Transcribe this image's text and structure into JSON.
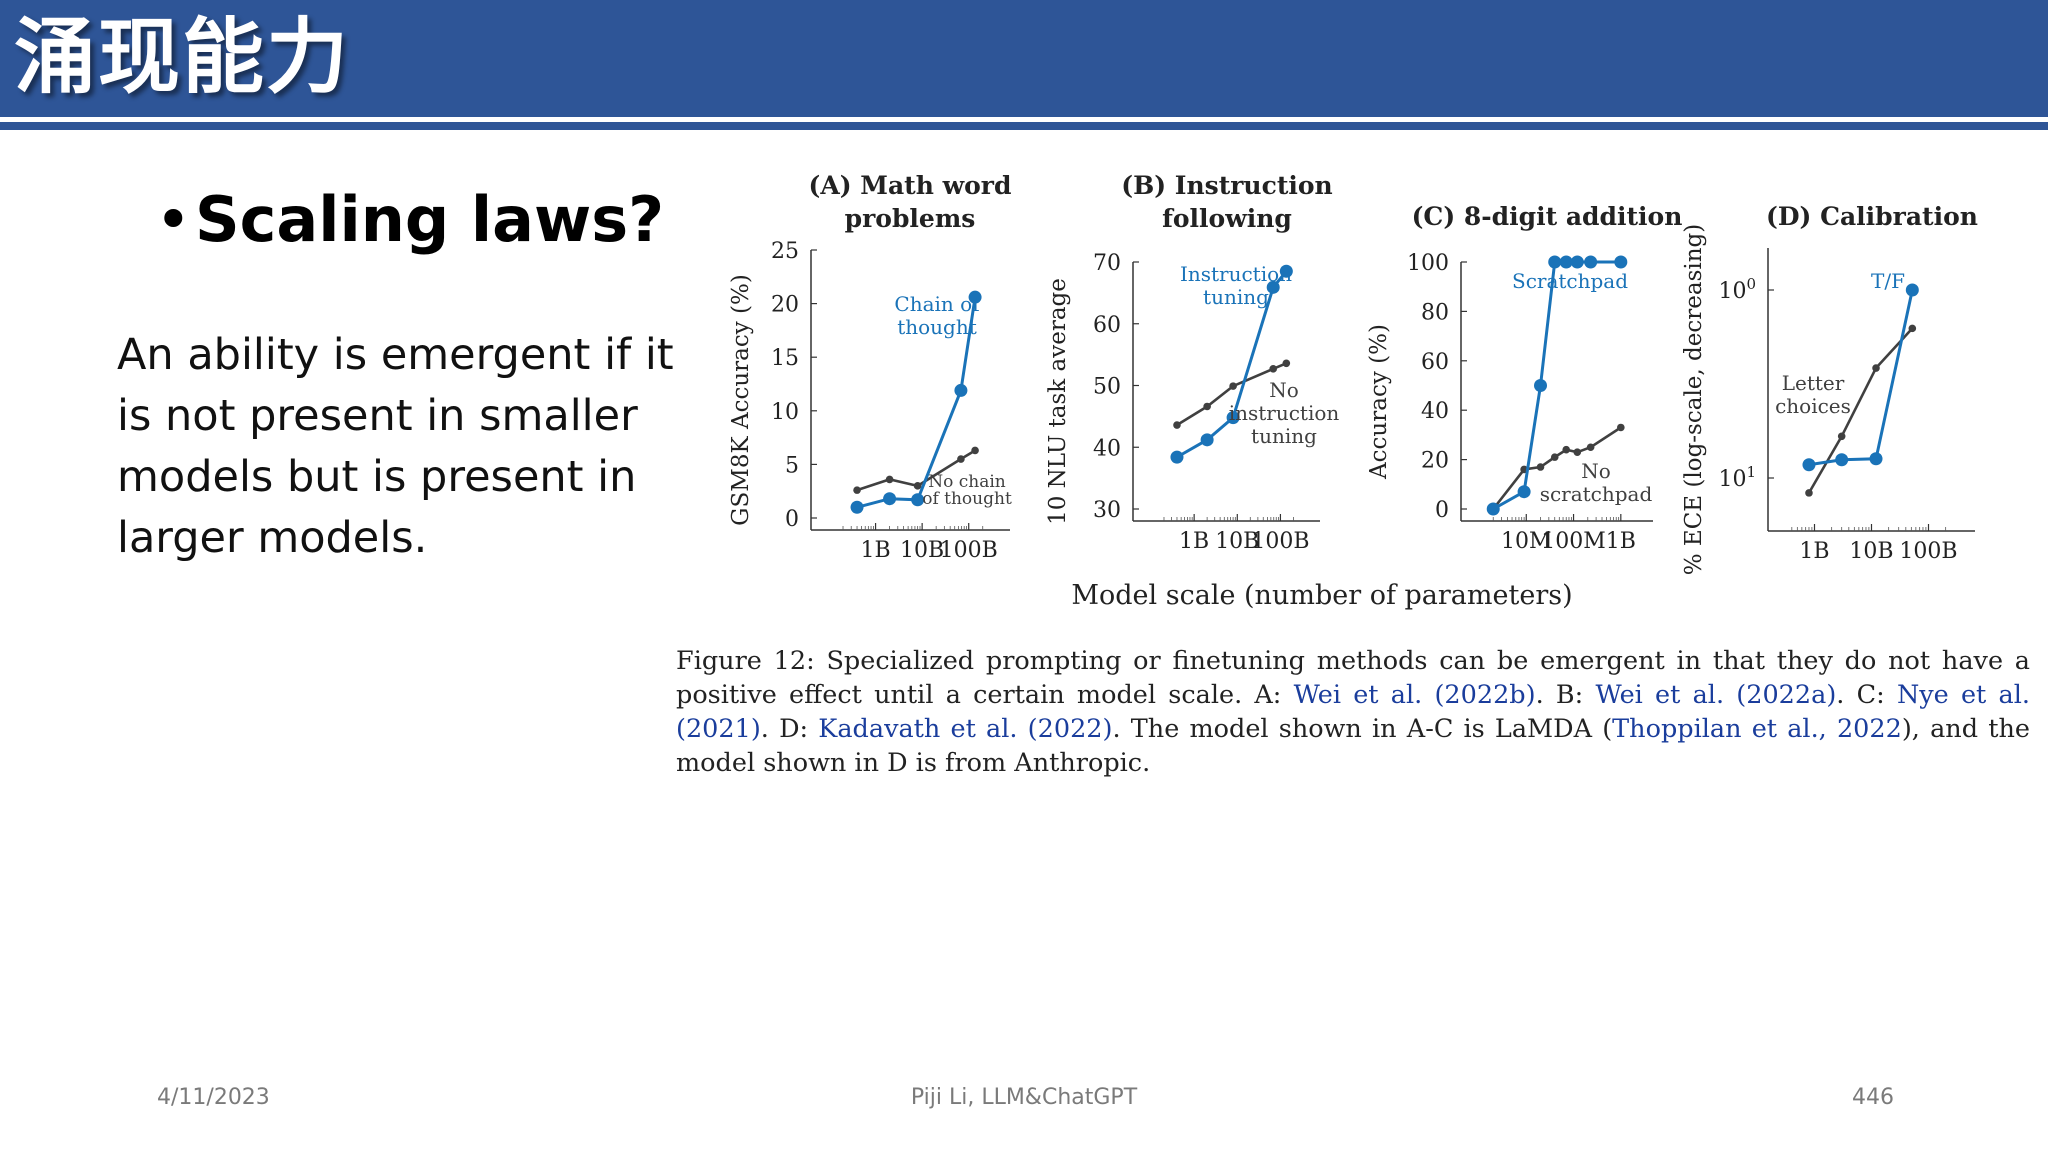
{
  "slide": {
    "title": "涌现能力",
    "bullet": "Scaling laws?",
    "paragraph": "An ability is emergent if it is not present in smaller models but is present in larger models."
  },
  "figure": {
    "shared_xlabel": "Model scale (number of parameters)",
    "caption": {
      "p1": "Figure 12: Specialized prompting or finetuning methods can be emergent in that they do not have a positive effect until a certain model scale.  A: ",
      "ref_a": "Wei et al. (2022b)",
      "p2": ".  B: ",
      "ref_b": "Wei et al. (2022a)",
      "p3": ".  C: ",
      "ref_c": "Nye et al. (2021)",
      "p4": ".  D: ",
      "ref_d": "Kadavath et al. (2022)",
      "p5": ". The model shown in A-C is LaMDA (",
      "ref_e": "Thoppilan et al., 2022",
      "p6": "), and the model shown in D is from Anthropic."
    }
  },
  "chart_data": [
    {
      "type": "line",
      "title": "(A) Math word problems",
      "ylabel": "GSM8K Accuracy (%)",
      "xscale": "log",
      "xticks": [
        "1B",
        "10B",
        "100B"
      ],
      "yticks": [
        "0",
        "5",
        "10",
        "15",
        "20",
        "25"
      ],
      "ylim": [
        0,
        25
      ],
      "series": [
        {
          "name": "Chain of thought",
          "color": "#1a73b8",
          "x": [
            400000000.0,
            2000000000.0,
            8000000000.0,
            68000000000.0,
            137000000000.0
          ],
          "y": [
            1.0,
            1.8,
            1.7,
            11.9,
            20.6
          ]
        },
        {
          "name": "No chain of thought",
          "color": "#404040",
          "x": [
            400000000.0,
            2000000000.0,
            8000000000.0,
            68000000000.0,
            137000000000.0
          ],
          "y": [
            2.6,
            3.6,
            3.0,
            5.5,
            6.3
          ]
        }
      ]
    },
    {
      "type": "line",
      "title": "(B) Instruction following",
      "ylabel": "10 NLU task average",
      "xscale": "log",
      "xticks": [
        "1B",
        "10B",
        "100B"
      ],
      "yticks": [
        "30",
        "40",
        "50",
        "60",
        "70"
      ],
      "ylim": [
        30,
        70
      ],
      "series": [
        {
          "name": "Instruction tuning",
          "color": "#1a73b8",
          "x": [
            400000000.0,
            2000000000.0,
            8000000000.0,
            68000000000.0,
            137000000000.0
          ],
          "y": [
            38.4,
            41.2,
            44.8,
            65.9,
            68.5
          ]
        },
        {
          "name": "No instruction tuning",
          "color": "#404040",
          "x": [
            400000000.0,
            2000000000.0,
            8000000000.0,
            68000000000.0,
            137000000000.0
          ],
          "y": [
            43.6,
            46.6,
            49.9,
            52.7,
            53.6
          ]
        }
      ]
    },
    {
      "type": "line",
      "title": "(C) 8-digit addition",
      "ylabel": "Accuracy (%)",
      "xscale": "log",
      "xticks": [
        "10M",
        "100M",
        "1B"
      ],
      "yticks": [
        "0",
        "20",
        "40",
        "60",
        "80",
        "100"
      ],
      "ylim": [
        0,
        100
      ],
      "series": [
        {
          "name": "Scratchpad",
          "color": "#1a73b8",
          "x": [
            2000000.0,
            9000000.0,
            20000000.0,
            40000000.0,
            70000000.0,
            120000000.0,
            230000000.0,
            1000000000.0
          ],
          "y": [
            0,
            7,
            50,
            100,
            100,
            100,
            100,
            100
          ]
        },
        {
          "name": "No scratchpad",
          "color": "#404040",
          "x": [
            2000000.0,
            9000000.0,
            20000000.0,
            40000000.0,
            70000000.0,
            120000000.0,
            230000000.0,
            1000000000.0
          ],
          "y": [
            0,
            16,
            17,
            21,
            24,
            23,
            25,
            33
          ]
        }
      ]
    },
    {
      "type": "line",
      "title": "(D) Calibration",
      "ylabel": "% ECE (log-scale, decreasing)",
      "xscale": "log",
      "yscale": "log-decreasing",
      "xticks": [
        "1B",
        "10B",
        "100B"
      ],
      "yticks": [
        "10^0",
        "10^1"
      ],
      "series": [
        {
          "name": "T/F",
          "color": "#1a73b8",
          "x": [
            800000000.0,
            3000000000.0,
            12000000000.0,
            52000000000.0
          ],
          "y": [
            8.5,
            8.0,
            7.9,
            1.0
          ]
        },
        {
          "name": "Letter choices",
          "color": "#404040",
          "x": [
            800000000.0,
            3000000000.0,
            12000000000.0,
            52000000000.0
          ],
          "y": [
            12.0,
            6.0,
            2.6,
            1.6
          ]
        }
      ]
    }
  ],
  "footer": {
    "date": "4/11/2023",
    "center": "Piji Li, LLM&ChatGPT",
    "page": "446"
  }
}
